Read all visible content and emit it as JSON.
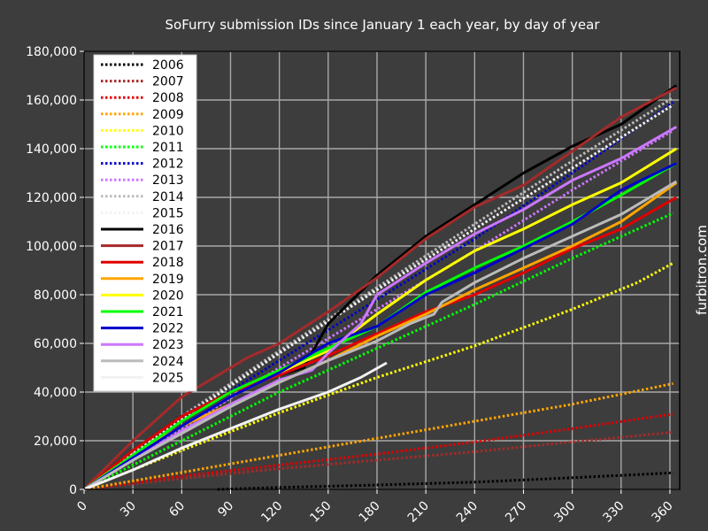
{
  "chart_data": {
    "type": "line",
    "title": "SoFurry submission IDs since January 1 each year, by day of year",
    "xlabel": "",
    "ylabel": "",
    "xlim": [
      0,
      366
    ],
    "ylim": [
      0,
      180000
    ],
    "xticks": [
      0,
      30,
      60,
      90,
      120,
      150,
      180,
      210,
      240,
      270,
      300,
      330,
      360
    ],
    "xtick_labels": [
      "0",
      "30",
      "60",
      "90",
      "120",
      "150",
      "180",
      "210",
      "240",
      "270",
      "300",
      "330",
      "360"
    ],
    "yticks": [
      0,
      20000,
      40000,
      60000,
      80000,
      100000,
      120000,
      140000,
      160000,
      180000
    ],
    "ytick_labels": [
      "0",
      "20,000",
      "40,000",
      "60,000",
      "80,000",
      "100,000",
      "120,000",
      "140,000",
      "160,000",
      "180,000"
    ],
    "grid": true,
    "legend_position": "top-left",
    "credit": "furbitron.com",
    "series": [
      {
        "name": "2006",
        "color": "#000000",
        "style": "dotted",
        "x": [
          82,
          120,
          180,
          240,
          300,
          362
        ],
        "y": [
          0,
          800,
          1800,
          3000,
          4800,
          6800
        ]
      },
      {
        "name": "2007",
        "color": "#a52a2a",
        "style": "dotted",
        "x": [
          0,
          60,
          120,
          180,
          240,
          300,
          362
        ],
        "y": [
          0,
          4500,
          8500,
          12000,
          15500,
          19500,
          23500
        ]
      },
      {
        "name": "2008",
        "color": "#e00000",
        "style": "dotted",
        "x": [
          0,
          60,
          120,
          180,
          240,
          300,
          362
        ],
        "y": [
          0,
          5500,
          10000,
          14500,
          19500,
          25000,
          31000
        ]
      },
      {
        "name": "2009",
        "color": "#ffa500",
        "style": "dotted",
        "x": [
          0,
          60,
          120,
          180,
          240,
          300,
          362
        ],
        "y": [
          0,
          7000,
          14000,
          21000,
          28000,
          35000,
          43500
        ]
      },
      {
        "name": "2010",
        "color": "#ffff00",
        "style": "dotted",
        "x": [
          0,
          60,
          120,
          180,
          240,
          300,
          340,
          362
        ],
        "y": [
          0,
          16000,
          31500,
          46000,
          59000,
          74000,
          85000,
          93000
        ]
      },
      {
        "name": "2011",
        "color": "#00ff00",
        "style": "dotted",
        "x": [
          0,
          60,
          120,
          180,
          240,
          300,
          362
        ],
        "y": [
          0,
          20000,
          40000,
          58000,
          76000,
          95000,
          113500
        ]
      },
      {
        "name": "2012",
        "color": "#0000cc",
        "style": "dotted",
        "x": [
          0,
          60,
          120,
          180,
          240,
          300,
          362
        ],
        "y": [
          0,
          28000,
          53000,
          78000,
          103000,
          130000,
          159000
        ]
      },
      {
        "name": "2013",
        "color": "#cc77ff",
        "style": "dotted",
        "x": [
          0,
          60,
          120,
          180,
          240,
          300,
          362
        ],
        "y": [
          0,
          25000,
          50000,
          74000,
          98000,
          123000,
          147500
        ]
      },
      {
        "name": "2014",
        "color": "#bbbbbb",
        "style": "dotted",
        "x": [
          0,
          60,
          120,
          180,
          240,
          300,
          362
        ],
        "y": [
          0,
          30000,
          57000,
          83000,
          109000,
          135000,
          161000
        ]
      },
      {
        "name": "2015",
        "color": "#f2f2f2",
        "style": "dotted",
        "x": [
          0,
          60,
          120,
          180,
          240,
          300,
          362
        ],
        "y": [
          0,
          29000,
          56000,
          82000,
          107000,
          132000,
          158000
        ]
      },
      {
        "name": "2016",
        "color": "#000000",
        "style": "solid",
        "x": [
          0,
          30,
          60,
          90,
          120,
          135,
          140,
          150,
          180,
          210,
          240,
          270,
          300,
          330,
          364
        ],
        "y": [
          0,
          16000,
          30000,
          40000,
          47000,
          50000,
          56000,
          68000,
          88000,
          104000,
          117000,
          130000,
          141000,
          150000,
          166000
        ]
      },
      {
        "name": "2017",
        "color": "#a52a2a",
        "style": "solid",
        "x": [
          0,
          30,
          60,
          90,
          100,
          120,
          150,
          180,
          210,
          240,
          270,
          300,
          330,
          364
        ],
        "y": [
          0,
          20000,
          38000,
          50000,
          54000,
          60000,
          73000,
          87000,
          103000,
          116000,
          125000,
          139000,
          153000,
          165000
        ]
      },
      {
        "name": "2018",
        "color": "#e00000",
        "style": "solid",
        "x": [
          0,
          30,
          60,
          90,
          120,
          150,
          180,
          210,
          240,
          270,
          300,
          330,
          364
        ],
        "y": [
          0,
          16000,
          30000,
          40000,
          47000,
          55000,
          64000,
          73000,
          80000,
          89000,
          99000,
          107000,
          120000
        ]
      },
      {
        "name": "2019",
        "color": "#ffa500",
        "style": "solid",
        "x": [
          0,
          30,
          60,
          90,
          120,
          150,
          180,
          210,
          240,
          270,
          300,
          330,
          364
        ],
        "y": [
          0,
          14000,
          26000,
          35000,
          44000,
          53000,
          63000,
          72000,
          82000,
          91000,
          100000,
          110000,
          126000
        ]
      },
      {
        "name": "2020",
        "color": "#ffff00",
        "style": "solid",
        "x": [
          0,
          30,
          60,
          90,
          120,
          150,
          180,
          210,
          240,
          270,
          300,
          330,
          364
        ],
        "y": [
          0,
          13000,
          26000,
          38000,
          48000,
          57000,
          72000,
          86000,
          98000,
          107000,
          117000,
          126000,
          140000
        ]
      },
      {
        "name": "2021",
        "color": "#00ff00",
        "style": "solid",
        "x": [
          0,
          30,
          60,
          90,
          120,
          150,
          180,
          210,
          240,
          270,
          300,
          330,
          364
        ],
        "y": [
          0,
          14000,
          28000,
          40000,
          49000,
          58000,
          67000,
          81000,
          91000,
          100000,
          110000,
          121000,
          134000
        ]
      },
      {
        "name": "2022",
        "color": "#0000cc",
        "style": "solid",
        "x": [
          0,
          30,
          60,
          90,
          120,
          150,
          180,
          210,
          240,
          270,
          300,
          330,
          364
        ],
        "y": [
          0,
          13000,
          26000,
          38000,
          48000,
          60000,
          67000,
          80000,
          89000,
          99000,
          109000,
          123000,
          134000
        ]
      },
      {
        "name": "2023",
        "color": "#cc77ff",
        "style": "solid",
        "x": [
          0,
          30,
          60,
          90,
          120,
          140,
          150,
          170,
          180,
          210,
          240,
          270,
          300,
          330,
          364
        ],
        "y": [
          0,
          12000,
          24000,
          35000,
          45000,
          49000,
          56000,
          68000,
          80000,
          93000,
          105000,
          115000,
          127000,
          136000,
          149000
        ]
      },
      {
        "name": "2024",
        "color": "#bbbbbb",
        "style": "solid",
        "x": [
          0,
          30,
          60,
          90,
          120,
          150,
          180,
          200,
          215,
          220,
          240,
          270,
          300,
          330,
          364
        ],
        "y": [
          0,
          12000,
          23000,
          34000,
          44000,
          53000,
          61000,
          68000,
          72000,
          77000,
          85000,
          95000,
          104000,
          113000,
          126500
        ]
      },
      {
        "name": "2025",
        "color": "#f2f2f2",
        "style": "solid",
        "x": [
          0,
          30,
          60,
          90,
          120,
          150,
          170,
          186
        ],
        "y": [
          0,
          8000,
          17000,
          25000,
          33000,
          40000,
          46000,
          52000
        ]
      }
    ]
  }
}
